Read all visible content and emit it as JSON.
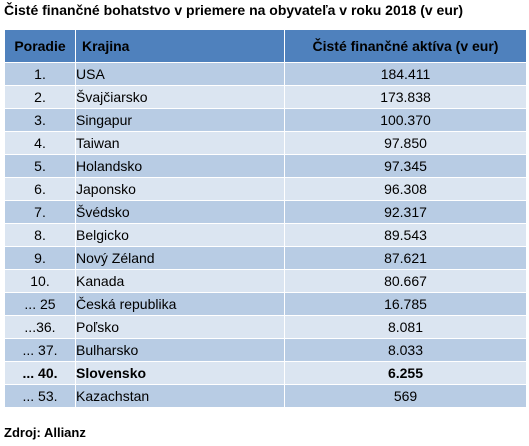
{
  "title": "Čisté finančné bohatstvo v priemere na obyvateľa v roku 2018 (v eur)",
  "source": "Zdroj: Allianz",
  "header": {
    "rank": "Poradie",
    "country": "Krajina",
    "value": "Čisté finančné aktíva (v eur)"
  },
  "colors": {
    "header_bg": "#4f81bd",
    "row_dark": "#b8cce4",
    "row_light": "#dbe5f1"
  },
  "chart_data": {
    "type": "table",
    "columns": [
      "Poradie",
      "Krajina",
      "Čisté finančné aktíva (v eur)"
    ],
    "rows": [
      {
        "rank": "1.",
        "country": "USA",
        "value": "184.411"
      },
      {
        "rank": "2.",
        "country": "Švajčiarsko",
        "value": "173.838"
      },
      {
        "rank": "3.",
        "country": "Singapur",
        "value": "100.370"
      },
      {
        "rank": "4.",
        "country": "Taiwan",
        "value": "97.850"
      },
      {
        "rank": "5.",
        "country": "Holandsko",
        "value": "97.345"
      },
      {
        "rank": "6.",
        "country": "Japonsko",
        "value": "96.308"
      },
      {
        "rank": "7.",
        "country": "Švédsko",
        "value": "92.317"
      },
      {
        "rank": "8.",
        "country": "Belgicko",
        "value": "89.543"
      },
      {
        "rank": "9.",
        "country": "Nový Zéland",
        "value": "87.621"
      },
      {
        "rank": "10.",
        "country": "Kanada",
        "value": "80.667"
      },
      {
        "rank": "... 25",
        "country": "Česká republika",
        "value": "16.785"
      },
      {
        "rank": "...36.",
        "country": "Poľsko",
        "value": "8.081"
      },
      {
        "rank": "... 37.",
        "country": "Bulharsko",
        "value": "8.033"
      },
      {
        "rank": "... 40.",
        "country": "Slovensko",
        "value": "6.255",
        "bold": true
      },
      {
        "rank": "... 53.",
        "country": "Kazachstan",
        "value": "569"
      }
    ]
  }
}
